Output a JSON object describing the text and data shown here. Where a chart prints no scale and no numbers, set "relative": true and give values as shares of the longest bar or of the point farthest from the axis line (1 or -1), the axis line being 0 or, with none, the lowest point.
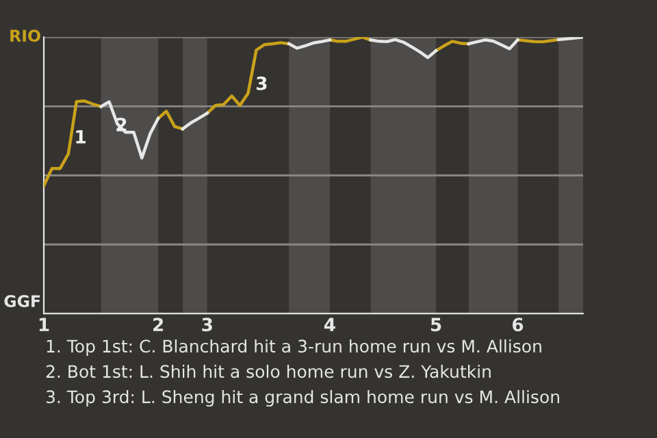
{
  "chart_data": {
    "type": "line",
    "relative": true,
    "categories": [
      "1",
      null,
      null,
      null,
      null,
      null,
      null,
      null,
      null,
      null,
      null,
      null,
      null,
      null,
      "2",
      null,
      null,
      null,
      null,
      null,
      "3",
      null,
      null,
      null,
      null,
      null,
      null,
      null,
      null,
      null,
      null,
      null,
      null,
      null,
      null,
      "4",
      null,
      null,
      null,
      null,
      null,
      null,
      null,
      null,
      null,
      null,
      null,
      null,
      "5",
      null,
      null,
      null,
      null,
      null,
      null,
      null,
      null,
      null,
      "6",
      null,
      null,
      null,
      null,
      null,
      null,
      null,
      null
    ],
    "series": [
      {
        "color": "#c9a21a",
        "values": [
          0.463,
          0.525,
          0.525,
          0.578,
          0.767,
          0.769,
          0.758,
          0.749,
          null,
          null,
          null,
          null,
          null,
          null,
          0.706,
          0.732,
          0.677,
          0.668,
          null,
          null,
          0.725,
          0.753,
          0.756,
          0.787,
          0.753,
          0.797,
          0.953,
          0.973,
          0.976,
          0.98,
          0.976,
          null,
          null,
          null,
          null,
          0.99,
          0.985,
          0.985,
          0.993,
          1,
          0.99,
          null,
          null,
          null,
          null,
          null,
          null,
          null,
          0.951,
          0.969,
          0.985,
          0.978,
          0.976,
          null,
          null,
          null,
          null,
          null,
          0.99,
          0.987,
          0.984,
          0.983,
          0.987,
          0.991,
          null,
          null,
          null
        ]
      },
      {
        "color": "#e6e6e6",
        "values": [
          null,
          null,
          null,
          null,
          null,
          null,
          null,
          0.749,
          0.766,
          0.686,
          0.656,
          0.656,
          0.563,
          0.65,
          0.706,
          null,
          null,
          0.668,
          0.69,
          0.707,
          0.725,
          null,
          null,
          null,
          null,
          null,
          null,
          null,
          null,
          null,
          0.976,
          0.96,
          0.969,
          0.979,
          0.984,
          0.99,
          null,
          null,
          null,
          null,
          0.99,
          0.985,
          0.984,
          0.991,
          0.982,
          0.965,
          0.947,
          0.926,
          0.951,
          null,
          null,
          null,
          0.976,
          0.983,
          0.99,
          0.986,
          0.972,
          0.958,
          0.99,
          null,
          null,
          null,
          null,
          0.991,
          0.994,
          0.997,
          1
        ]
      }
    ],
    "grid": "y",
    "line_style": "solid",
    "annotations": [
      "1",
      "2",
      "3",
      "RIO",
      "GGF",
      "1. Top 1st: C. Blanchard hit a 3-run home run vs M. Allison",
      "2. Bot 1st: L. Shih hit a solo home run vs Z. Yakutkin",
      "3. Top 3rd: L. Sheng hit a grand slam home run vs M. Allison"
    ]
  }
}
